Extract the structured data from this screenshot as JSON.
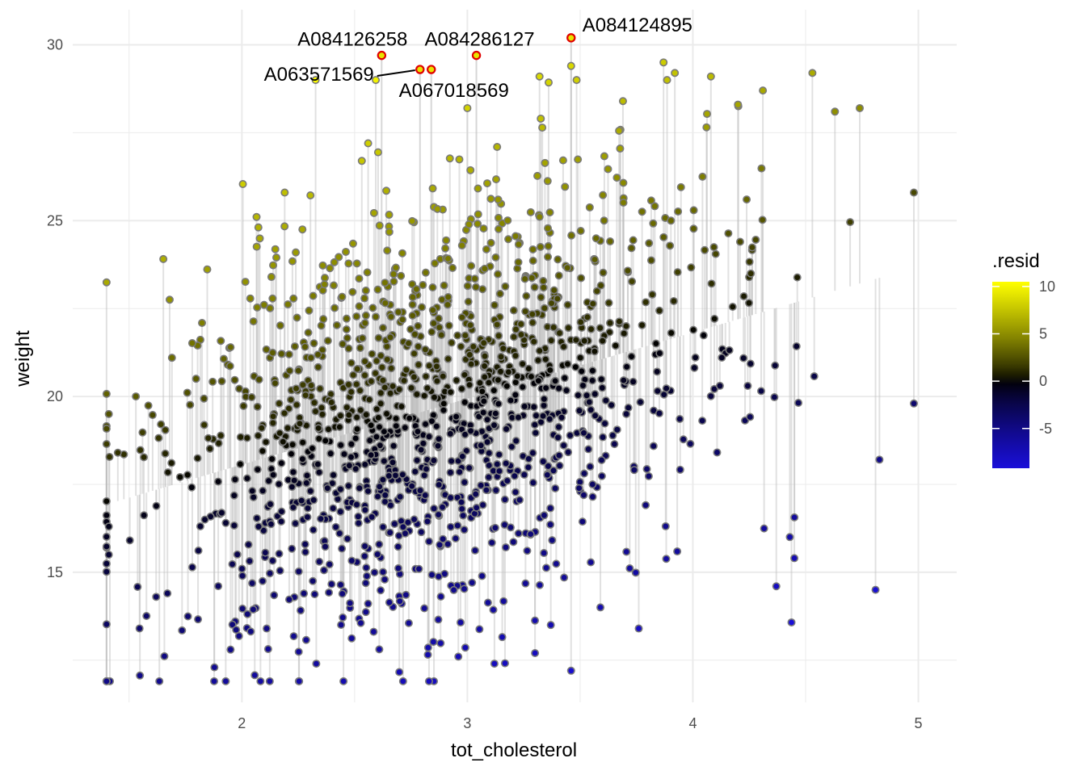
{
  "chart_data": {
    "type": "scatter",
    "title": "",
    "xlabel": "tot_cholesterol",
    "ylabel": "weight",
    "xlim": [
      1.25,
      5.17
    ],
    "ylim": [
      11.3,
      31.0
    ],
    "x_ticks": [
      2,
      3,
      4,
      5
    ],
    "y_ticks": [
      15,
      20,
      25,
      30
    ],
    "grid": true,
    "fit_line": {
      "intercept": 14.3,
      "slope": 1.88,
      "shown_as": "residual segments from fitted value to each point"
    },
    "color_scale": {
      "title": ".resid",
      "ticks": [
        10,
        5,
        0,
        -5
      ],
      "range": [
        -9.2,
        10.5
      ],
      "low": "#1a0fd9",
      "mid": "#000000",
      "high": "#ffff00"
    },
    "highlight": {
      "fill": "#e8e400",
      "stroke": "#e00000"
    },
    "legend_position": "right",
    "n_points": 1400,
    "point_generation_seed": 7,
    "labeled_points": [
      {
        "id": "A084124895",
        "x": 3.46,
        "y": 30.2
      },
      {
        "id": "A084126258",
        "x": 2.62,
        "y": 29.7
      },
      {
        "id": "A084286127",
        "x": 3.04,
        "y": 29.7
      },
      {
        "id": "A063571569",
        "x": 2.79,
        "y": 29.3
      },
      {
        "id": "A067018569",
        "x": 2.84,
        "y": 29.3
      }
    ],
    "notable_points": [
      {
        "x": 1.41,
        "y": 19.5
      },
      {
        "x": 1.41,
        "y": 16.3
      },
      {
        "x": 1.41,
        "y": 15.5
      },
      {
        "x": 1.45,
        "y": 18.4
      },
      {
        "x": 1.53,
        "y": 20.0
      },
      {
        "x": 1.62,
        "y": 14.3
      },
      {
        "x": 1.67,
        "y": 14.4
      },
      {
        "x": 1.69,
        "y": 21.1
      },
      {
        "x": 1.95,
        "y": 21.4
      },
      {
        "x": 1.95,
        "y": 12.8
      },
      {
        "x": 2.11,
        "y": 13.4
      },
      {
        "x": 2.19,
        "y": 25.8
      },
      {
        "x": 2.33,
        "y": 12.4
      },
      {
        "x": 2.56,
        "y": 27.2
      },
      {
        "x": 2.83,
        "y": 11.9
      },
      {
        "x": 2.96,
        "y": 12.6
      },
      {
        "x": 3.0,
        "y": 28.2
      },
      {
        "x": 3.12,
        "y": 12.4
      },
      {
        "x": 3.3,
        "y": 12.7
      },
      {
        "x": 3.32,
        "y": 29.1
      },
      {
        "x": 3.46,
        "y": 12.2
      },
      {
        "x": 3.46,
        "y": 29.4
      },
      {
        "x": 3.69,
        "y": 28.4
      },
      {
        "x": 3.87,
        "y": 29.5
      },
      {
        "x": 3.92,
        "y": 29.2
      },
      {
        "x": 4.08,
        "y": 29.1
      },
      {
        "x": 4.2,
        "y": 28.3
      },
      {
        "x": 4.53,
        "y": 29.2
      },
      {
        "x": 4.63,
        "y": 28.1
      },
      {
        "x": 4.74,
        "y": 28.2
      },
      {
        "x": 4.81,
        "y": 14.5
      },
      {
        "x": 4.98,
        "y": 25.8
      },
      {
        "x": 4.98,
        "y": 19.8
      },
      {
        "x": 4.37,
        "y": 14.6
      },
      {
        "x": 4.43,
        "y": 16.0
      },
      {
        "x": 4.45,
        "y": 15.4
      },
      {
        "x": 3.76,
        "y": 13.4
      },
      {
        "x": 3.59,
        "y": 14.0
      },
      {
        "x": 3.37,
        "y": 13.5
      }
    ]
  }
}
